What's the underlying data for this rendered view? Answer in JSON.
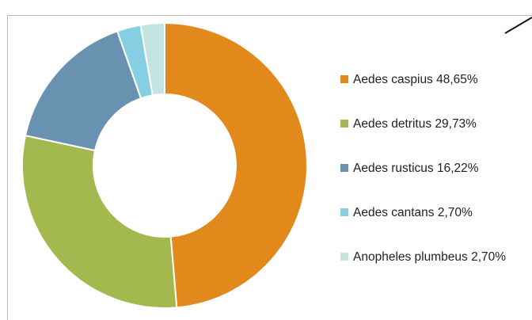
{
  "chart_data": {
    "type": "pie",
    "title": "",
    "donut": true,
    "legend_position": "right",
    "categories": [
      "Aedes caspius",
      "Aedes detritus",
      "Aedes rusticus",
      "Aedes cantans",
      "Anopheles plumbeus"
    ],
    "values": [
      48.65,
      29.73,
      16.22,
      2.7,
      2.7
    ],
    "legend_labels": [
      "Aedes caspius 48,65%",
      "Aedes detritus 29,73%",
      "Aedes rusticus 16,22%",
      "Aedes cantans 2,70%",
      "Anopheles plumbeus 2,70%"
    ],
    "colors": [
      "#e18a1b",
      "#a3b94f",
      "#6991b0",
      "#86cfe3",
      "#c3e5e1"
    ]
  }
}
